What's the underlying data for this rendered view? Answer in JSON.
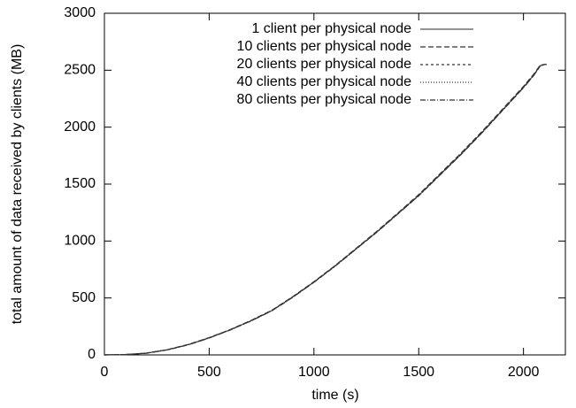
{
  "chart_data": {
    "type": "line",
    "x_label": "time (s)",
    "y_label": "total amount of data received by clients (MB)",
    "x": [
      0,
      100,
      200,
      300,
      400,
      500,
      600,
      700,
      800,
      900,
      1000,
      1100,
      1200,
      1300,
      1400,
      1500,
      1600,
      1700,
      1800,
      1900,
      2000,
      2050,
      2080,
      2100,
      2110
    ],
    "series": [
      {
        "name": "1 client per physical node",
        "color": "#555555",
        "dash": "none",
        "values": [
          0,
          3,
          15,
          45,
          90,
          150,
          220,
          300,
          390,
          510,
          640,
          780,
          930,
          1080,
          1240,
          1400,
          1580,
          1760,
          1950,
          2150,
          2350,
          2460,
          2540,
          2550,
          2550
        ]
      },
      {
        "name": "10 clients per physical node",
        "color": "#333333",
        "dash": "6,3",
        "values": [
          0,
          3,
          16,
          46,
          92,
          152,
          222,
          303,
          393,
          513,
          643,
          783,
          934,
          1085,
          1245,
          1408,
          1588,
          1768,
          1958,
          2158,
          2358,
          2468,
          2545,
          2550,
          2550
        ]
      },
      {
        "name": "20 clients per physical node",
        "color": "#333333",
        "dash": "3,3",
        "values": [
          0,
          3,
          15,
          44,
          89,
          149,
          219,
          299,
          389,
          508,
          638,
          778,
          928,
          1078,
          1238,
          1398,
          1577,
          1757,
          1947,
          2147,
          2347,
          2457,
          2538,
          2550,
          2550
        ]
      },
      {
        "name": "40 clients per physical node",
        "color": "#333333",
        "dash": "1,2",
        "values": [
          0,
          3,
          15,
          45,
          90,
          151,
          221,
          301,
          391,
          511,
          641,
          781,
          931,
          1082,
          1242,
          1403,
          1583,
          1763,
          1953,
          2153,
          2353,
          2463,
          2542,
          2550,
          2550
        ]
      },
      {
        "name": "80 clients per physical node",
        "color": "#333333",
        "dash": "6,2,1,2",
        "values": [
          0,
          3,
          14,
          44,
          88,
          148,
          218,
          298,
          388,
          507,
          637,
          777,
          927,
          1077,
          1237,
          1397,
          1576,
          1756,
          1946,
          2146,
          2346,
          2456,
          2537,
          2550,
          2550
        ]
      }
    ],
    "xlim": [
      0,
      2200
    ],
    "xticks": [
      0,
      500,
      1000,
      1500,
      2000
    ],
    "ylim": [
      0,
      3000
    ],
    "yticks": [
      0,
      500,
      1000,
      1500,
      2000,
      2500,
      3000
    ],
    "legend": "top-right"
  }
}
